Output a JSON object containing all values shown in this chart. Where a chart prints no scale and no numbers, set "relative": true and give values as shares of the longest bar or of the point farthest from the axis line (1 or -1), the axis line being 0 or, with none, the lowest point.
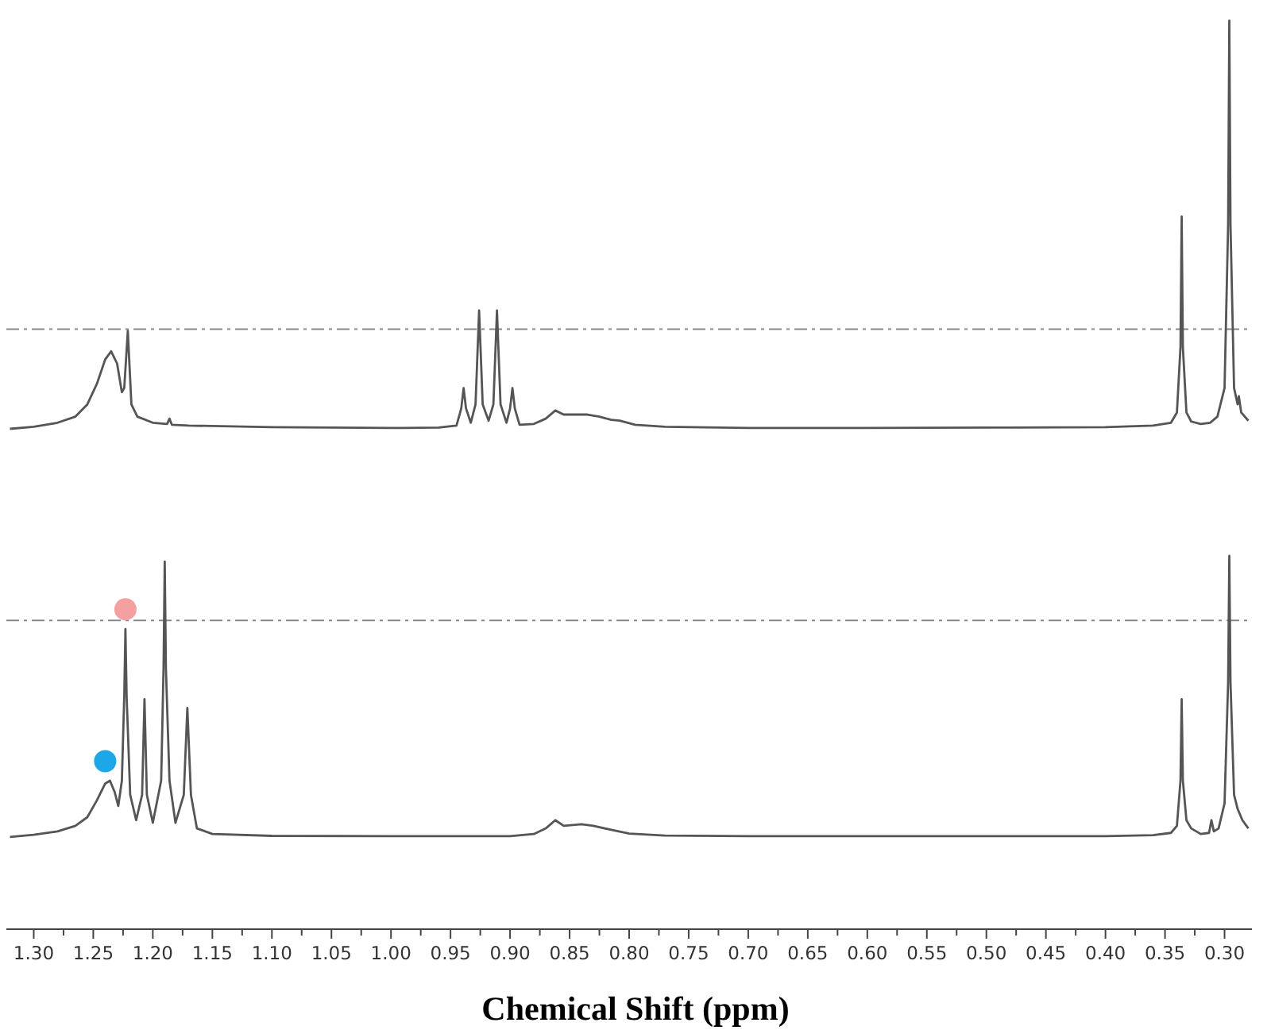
{
  "chart_data": [
    {
      "type": "line",
      "relative": true,
      "xlim": [
        1.323,
        0.277
      ],
      "tick_labels": false,
      "series": [
        {
          "color": "#555555",
          "x": [
            1.32,
            1.3,
            1.28,
            1.265,
            1.255,
            1.247,
            1.24,
            1.235,
            1.23,
            1.226,
            1.224,
            1.221,
            1.218,
            1.213,
            1.2,
            1.188,
            1.186,
            1.184,
            1.17,
            1.1,
            1.0,
            0.96,
            0.945,
            0.941,
            0.939,
            0.937,
            0.933,
            0.929,
            0.926,
            0.923,
            0.918,
            0.914,
            0.911,
            0.908,
            0.903,
            0.9,
            0.898,
            0.896,
            0.892,
            0.88,
            0.87,
            0.862,
            0.855,
            0.845,
            0.835,
            0.825,
            0.815,
            0.808,
            0.795,
            0.77,
            0.7,
            0.6,
            0.5,
            0.4,
            0.36,
            0.345,
            0.34,
            0.337,
            0.336,
            0.335,
            0.332,
            0.328,
            0.32,
            0.312,
            0.306,
            0.3,
            0.297,
            0.296,
            0.295,
            0.292,
            0.289,
            0.288,
            0.286,
            0.28
          ],
          "values": [
            0.0,
            0.005,
            0.015,
            0.03,
            0.06,
            0.11,
            0.17,
            0.19,
            0.16,
            0.09,
            0.1,
            0.24,
            0.06,
            0.03,
            0.015,
            0.012,
            0.025,
            0.01,
            0.008,
            0.004,
            0.002,
            0.003,
            0.008,
            0.05,
            0.1,
            0.05,
            0.015,
            0.06,
            0.29,
            0.06,
            0.02,
            0.06,
            0.29,
            0.06,
            0.015,
            0.05,
            0.1,
            0.05,
            0.01,
            0.012,
            0.025,
            0.045,
            0.035,
            0.035,
            0.035,
            0.03,
            0.022,
            0.02,
            0.01,
            0.005,
            0.002,
            0.002,
            0.003,
            0.004,
            0.008,
            0.015,
            0.04,
            0.2,
            0.52,
            0.2,
            0.04,
            0.018,
            0.012,
            0.015,
            0.03,
            0.1,
            0.5,
            1.0,
            0.5,
            0.1,
            0.06,
            0.08,
            0.04,
            0.02
          ]
        }
      ],
      "ref_lines": [
        {
          "axis": "y",
          "value": 0.244,
          "color": "#888888",
          "line_style": "dashed"
        }
      ]
    },
    {
      "type": "line",
      "relative": true,
      "xlim": [
        1.323,
        0.277
      ],
      "tick_labels": "x",
      "xlabel": "Chemical Shift (ppm)",
      "xticks": [
        {
          "value": 1.3,
          "label": "1.30"
        },
        {
          "value": 1.275,
          "label": null
        },
        {
          "value": 1.25,
          "label": "1.25"
        },
        {
          "value": 1.225,
          "label": null
        },
        {
          "value": 1.2,
          "label": "1.20"
        },
        {
          "value": 1.175,
          "label": null
        },
        {
          "value": 1.15,
          "label": "1.15"
        },
        {
          "value": 1.125,
          "label": null
        },
        {
          "value": 1.1,
          "label": "1.10"
        },
        {
          "value": 1.075,
          "label": null
        },
        {
          "value": 1.05,
          "label": "1.05"
        },
        {
          "value": 1.025,
          "label": null
        },
        {
          "value": 1.0,
          "label": "1.00"
        },
        {
          "value": 0.975,
          "label": null
        },
        {
          "value": 0.95,
          "label": "0.95"
        },
        {
          "value": 0.925,
          "label": null
        },
        {
          "value": 0.9,
          "label": "0.90"
        },
        {
          "value": 0.875,
          "label": null
        },
        {
          "value": 0.85,
          "label": "0.85"
        },
        {
          "value": 0.825,
          "label": null
        },
        {
          "value": 0.8,
          "label": "0.80"
        },
        {
          "value": 0.775,
          "label": null
        },
        {
          "value": 0.75,
          "label": "0.75"
        },
        {
          "value": 0.725,
          "label": null
        },
        {
          "value": 0.7,
          "label": "0.70"
        },
        {
          "value": 0.675,
          "label": null
        },
        {
          "value": 0.65,
          "label": "0.65"
        },
        {
          "value": 0.625,
          "label": null
        },
        {
          "value": 0.6,
          "label": "0.60"
        },
        {
          "value": 0.575,
          "label": null
        },
        {
          "value": 0.55,
          "label": "0.55"
        },
        {
          "value": 0.525,
          "label": null
        },
        {
          "value": 0.5,
          "label": "0.50"
        },
        {
          "value": 0.475,
          "label": null
        },
        {
          "value": 0.45,
          "label": "0.45"
        },
        {
          "value": 0.425,
          "label": null
        },
        {
          "value": 0.4,
          "label": "0.40"
        },
        {
          "value": 0.375,
          "label": null
        },
        {
          "value": 0.35,
          "label": "0.35"
        },
        {
          "value": 0.325,
          "label": null
        },
        {
          "value": 0.3,
          "label": "0.30"
        }
      ],
      "series": [
        {
          "color": "#555555",
          "x": [
            1.32,
            1.3,
            1.28,
            1.265,
            1.255,
            1.247,
            1.24,
            1.236,
            1.232,
            1.229,
            1.226,
            1.224,
            1.223,
            1.222,
            1.219,
            1.214,
            1.209,
            1.207,
            1.205,
            1.2,
            1.193,
            1.191,
            1.19,
            1.189,
            1.186,
            1.181,
            1.174,
            1.171,
            1.168,
            1.163,
            1.15,
            1.1,
            1.0,
            0.9,
            0.88,
            0.87,
            0.862,
            0.855,
            0.84,
            0.83,
            0.815,
            0.8,
            0.77,
            0.7,
            0.6,
            0.5,
            0.4,
            0.36,
            0.345,
            0.34,
            0.337,
            0.336,
            0.335,
            0.332,
            0.328,
            0.32,
            0.313,
            0.311,
            0.309,
            0.305,
            0.3,
            0.297,
            0.296,
            0.295,
            0.292,
            0.289,
            0.285,
            0.28
          ],
          "values": [
            0.247,
            0.253,
            0.262,
            0.277,
            0.3,
            0.345,
            0.39,
            0.398,
            0.367,
            0.33,
            0.398,
            0.624,
            0.804,
            0.624,
            0.36,
            0.292,
            0.36,
            0.616,
            0.36,
            0.285,
            0.398,
            0.699,
            0.985,
            0.699,
            0.398,
            0.285,
            0.36,
            0.593,
            0.36,
            0.27,
            0.255,
            0.25,
            0.249,
            0.249,
            0.255,
            0.27,
            0.292,
            0.277,
            0.281,
            0.277,
            0.266,
            0.256,
            0.251,
            0.249,
            0.249,
            0.249,
            0.249,
            0.252,
            0.258,
            0.277,
            0.398,
            0.616,
            0.398,
            0.292,
            0.27,
            0.255,
            0.258,
            0.292,
            0.262,
            0.27,
            0.337,
            0.661,
            1.0,
            0.661,
            0.36,
            0.322,
            0.292,
            0.27
          ]
        },
        {
          "type": "scatter",
          "marker": "circle",
          "color": "#f4a0a0",
          "x": [
            1.223
          ],
          "values": [
            0.857
          ]
        },
        {
          "type": "scatter",
          "marker": "circle",
          "color": "#1ea7e8",
          "x": [
            1.24
          ],
          "values": [
            0.45
          ]
        }
      ],
      "ref_lines": [
        {
          "axis": "y",
          "value": 0.827,
          "color": "#888888",
          "line_style": "dashed"
        }
      ]
    }
  ]
}
